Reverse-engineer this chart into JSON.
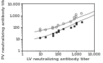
{
  "title": "",
  "xlabel": "LV neutralizing antibody titer",
  "ylabel": "PV neutralizing antibody titer",
  "xlim": [
    1,
    10000
  ],
  "ylim": [
    1,
    10000
  ],
  "background_color": "#ffffff",
  "pv90_data": [
    [
      10,
      50
    ],
    [
      10,
      70
    ],
    [
      20,
      60
    ],
    [
      50,
      80
    ],
    [
      50,
      100
    ],
    [
      80,
      100
    ],
    [
      100,
      150
    ],
    [
      200,
      200
    ],
    [
      500,
      300
    ],
    [
      800,
      500
    ],
    [
      800,
      700
    ],
    [
      1000,
      800
    ],
    [
      1000,
      1200
    ],
    [
      2000,
      1500
    ]
  ],
  "pv50_data": [
    [
      10,
      13
    ],
    [
      20,
      15
    ],
    [
      50,
      20
    ],
    [
      50,
      30
    ],
    [
      80,
      40
    ],
    [
      100,
      45
    ],
    [
      100,
      55
    ],
    [
      200,
      70
    ],
    [
      500,
      100
    ],
    [
      800,
      130
    ],
    [
      1000,
      180
    ],
    [
      1000,
      250
    ],
    [
      2000,
      300
    ]
  ],
  "curve90_x": [
    5,
    10,
    20,
    50,
    100,
    200,
    500,
    1000,
    2000,
    5000,
    10000
  ],
  "curve90_y": [
    40,
    50,
    65,
    85,
    120,
    180,
    320,
    550,
    850,
    1400,
    2200
  ],
  "curve50_x": [
    5,
    10,
    20,
    50,
    100,
    200,
    500,
    1000,
    2000,
    5000,
    10000
  ],
  "curve50_y": [
    10,
    13,
    17,
    28,
    45,
    75,
    140,
    230,
    380,
    650,
    1100
  ],
  "pv90_color": "#666666",
  "pv50_color": "#111111",
  "curve_color": "#888888",
  "tick_label_fontsize": 4.0,
  "axis_label_fontsize": 4.5
}
